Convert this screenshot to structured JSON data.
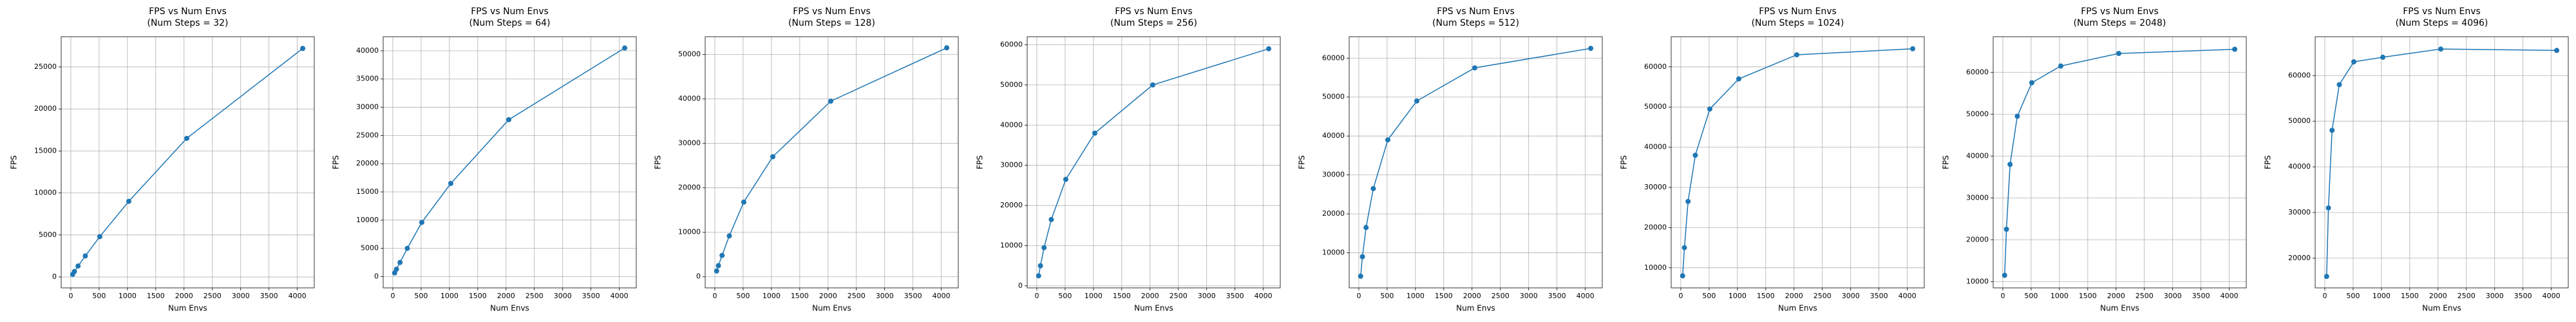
{
  "chart_data": [
    {
      "type": "line",
      "title": "FPS vs Num Envs",
      "subtitle": "(Num Steps = 32)",
      "x_label": "Num Envs",
      "y_label": "FPS",
      "x": [
        32,
        64,
        128,
        256,
        512,
        1024,
        2048,
        4096
      ],
      "series": [
        {
          "color": "#1f77b4",
          "values": [
            300,
            650,
            1300,
            2500,
            4800,
            9000,
            16500,
            27200
          ]
        }
      ],
      "xlim": [
        -170,
        4300
      ],
      "xticks": [
        0,
        500,
        1000,
        1500,
        2000,
        2500,
        3000,
        3500,
        4000
      ],
      "ylim": [
        -1300,
        28600
      ],
      "yticks": [
        0,
        5000,
        10000,
        15000,
        20000,
        25000
      ],
      "grid": true
    },
    {
      "type": "line",
      "title": "FPS vs Num Envs",
      "subtitle": "(Num Steps = 64)",
      "x_label": "Num Envs",
      "y_label": "FPS",
      "x": [
        32,
        64,
        128,
        256,
        512,
        1024,
        2048,
        4096
      ],
      "series": [
        {
          "color": "#1f77b4",
          "values": [
            650,
            1300,
            2500,
            5000,
            9600,
            16500,
            27800,
            40500
          ]
        }
      ],
      "xlim": [
        -170,
        4300
      ],
      "xticks": [
        0,
        500,
        1000,
        1500,
        2000,
        2500,
        3000,
        3500,
        4000
      ],
      "ylim": [
        -2000,
        42500
      ],
      "yticks": [
        0,
        5000,
        10000,
        15000,
        20000,
        25000,
        30000,
        35000,
        40000
      ],
      "grid": true
    },
    {
      "type": "line",
      "title": "FPS vs Num Envs",
      "subtitle": "(Num Steps = 128)",
      "x_label": "Num Envs",
      "y_label": "FPS",
      "x": [
        32,
        64,
        128,
        256,
        512,
        1024,
        2048,
        4096
      ],
      "series": [
        {
          "color": "#1f77b4",
          "values": [
            1300,
            2500,
            4800,
            9200,
            16800,
            27000,
            39500,
            51500
          ]
        }
      ],
      "xlim": [
        -170,
        4300
      ],
      "xticks": [
        0,
        500,
        1000,
        1500,
        2000,
        2500,
        3000,
        3500,
        4000
      ],
      "ylim": [
        -2500,
        54000
      ],
      "yticks": [
        0,
        10000,
        20000,
        30000,
        40000,
        50000
      ],
      "grid": true
    },
    {
      "type": "line",
      "title": "FPS vs Num Envs",
      "subtitle": "(Num Steps = 256)",
      "x_label": "Num Envs",
      "y_label": "FPS",
      "x": [
        32,
        64,
        128,
        256,
        512,
        1024,
        2048,
        4096
      ],
      "series": [
        {
          "color": "#1f77b4",
          "values": [
            2500,
            5000,
            9500,
            16500,
            26500,
            38000,
            50000,
            59000
          ]
        }
      ],
      "xlim": [
        -170,
        4300
      ],
      "xticks": [
        0,
        500,
        1000,
        1500,
        2000,
        2500,
        3000,
        3500,
        4000
      ],
      "ylim": [
        -500,
        62000
      ],
      "yticks": [
        0,
        10000,
        20000,
        30000,
        40000,
        50000,
        60000
      ],
      "grid": true
    },
    {
      "type": "line",
      "title": "FPS vs Num Envs",
      "subtitle": "(Num Steps = 512)",
      "x_label": "Num Envs",
      "y_label": "FPS",
      "x": [
        32,
        64,
        128,
        256,
        512,
        1024,
        2048,
        4096
      ],
      "series": [
        {
          "color": "#1f77b4",
          "values": [
            4000,
            9000,
            16500,
            26500,
            39000,
            49000,
            57500,
            62500
          ]
        }
      ],
      "xlim": [
        -170,
        4300
      ],
      "xticks": [
        0,
        500,
        1000,
        1500,
        2000,
        2500,
        3000,
        3500,
        4000
      ],
      "ylim": [
        1000,
        65500
      ],
      "yticks": [
        10000,
        20000,
        30000,
        40000,
        50000,
        60000
      ],
      "grid": true
    },
    {
      "type": "line",
      "title": "FPS vs Num Envs",
      "subtitle": "(Num Steps = 1024)",
      "x_label": "Num Envs",
      "y_label": "FPS",
      "x": [
        32,
        64,
        128,
        256,
        512,
        1024,
        2048,
        4096
      ],
      "series": [
        {
          "color": "#1f77b4",
          "values": [
            8000,
            15000,
            26500,
            38000,
            49500,
            57000,
            63000,
            64500
          ]
        }
      ],
      "xlim": [
        -170,
        4300
      ],
      "xticks": [
        0,
        500,
        1000,
        1500,
        2000,
        2500,
        3000,
        3500,
        4000
      ],
      "ylim": [
        5000,
        67500
      ],
      "yticks": [
        10000,
        20000,
        30000,
        40000,
        50000,
        60000
      ],
      "grid": true
    },
    {
      "type": "line",
      "title": "FPS vs Num Envs",
      "subtitle": "(Num Steps = 2048)",
      "x_label": "Num Envs",
      "y_label": "FPS",
      "x": [
        32,
        64,
        128,
        256,
        512,
        1024,
        2048,
        4096
      ],
      "series": [
        {
          "color": "#1f77b4",
          "values": [
            11500,
            22500,
            38000,
            49500,
            57500,
            61500,
            64500,
            65500
          ]
        }
      ],
      "xlim": [
        -170,
        4300
      ],
      "xticks": [
        0,
        500,
        1000,
        1500,
        2000,
        2500,
        3000,
        3500,
        4000
      ],
      "ylim": [
        8500,
        68500
      ],
      "yticks": [
        10000,
        20000,
        30000,
        40000,
        50000,
        60000
      ],
      "grid": true
    },
    {
      "type": "line",
      "title": "FPS vs Num Envs",
      "subtitle": "(Num Steps = 4096)",
      "x_label": "Num Envs",
      "y_label": "FPS",
      "x": [
        32,
        64,
        128,
        256,
        512,
        1024,
        2048,
        4096
      ],
      "series": [
        {
          "color": "#1f77b4",
          "values": [
            16000,
            31000,
            48000,
            58000,
            63000,
            64000,
            65800,
            65500
          ]
        }
      ],
      "xlim": [
        -170,
        4300
      ],
      "xticks": [
        0,
        500,
        1000,
        1500,
        2000,
        2500,
        3000,
        3500,
        4000
      ],
      "ylim": [
        13500,
        68500
      ],
      "yticks": [
        20000,
        30000,
        40000,
        50000,
        60000
      ],
      "grid": true
    }
  ]
}
